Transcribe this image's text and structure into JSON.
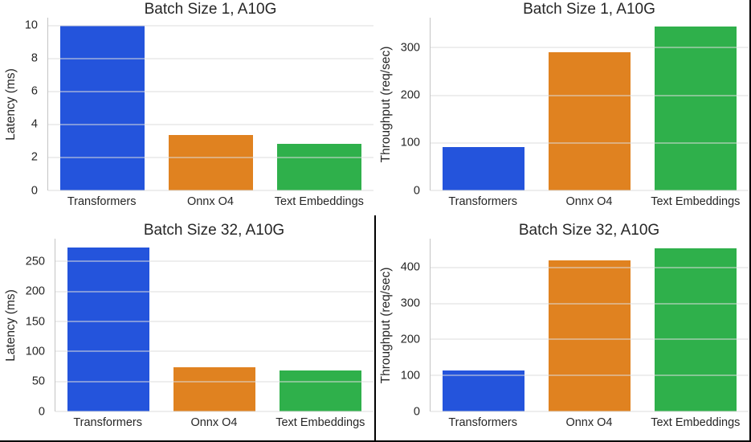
{
  "figure": {
    "background": "#ffffff",
    "text_color": "#262626",
    "grid_color": "#dcdcdc",
    "spine_color": "#c4c4c4",
    "divider_color": "#000000",
    "bar_colors": [
      "#2454dc",
      "#e08220",
      "#2fb04b"
    ]
  },
  "chart_data": [
    {
      "id": "latency-batch-1",
      "type": "bar",
      "title": "Batch Size 1, A10G",
      "xlabel": "",
      "ylabel": "Latency (ms)",
      "categories": [
        "Transformers",
        "Onnx O4",
        "Text Embeddings"
      ],
      "values": [
        9.97,
        3.37,
        2.84
      ],
      "yticks": [
        0,
        2,
        4,
        6,
        8,
        10
      ],
      "ylim": [
        0,
        10.47
      ],
      "grid": true,
      "legend": false
    },
    {
      "id": "throughput-batch-1",
      "type": "bar",
      "title": "Batch Size 1, A10G",
      "xlabel": "",
      "ylabel": "Throughput (req/sec)",
      "categories": [
        "Transformers",
        "Onnx O4",
        "Text Embeddings"
      ],
      "values": [
        92,
        290,
        344
      ],
      "yticks": [
        0,
        100,
        200,
        300
      ],
      "ylim": [
        0,
        363
      ],
      "grid": true,
      "legend": false
    },
    {
      "id": "latency-batch-32",
      "type": "bar",
      "title": "Batch Size 32, A10G",
      "xlabel": "",
      "ylabel": "Latency (ms)",
      "categories": [
        "Transformers",
        "Onnx O4",
        "Text Embeddings"
      ],
      "values": [
        273,
        74,
        68
      ],
      "yticks": [
        0,
        50,
        100,
        150,
        200,
        250
      ],
      "ylim": [
        0,
        288
      ],
      "grid": true,
      "legend": false
    },
    {
      "id": "throughput-batch-32",
      "type": "bar",
      "title": "Batch Size 32, A10G",
      "xlabel": "",
      "ylabel": "Throughput (req/sec)",
      "categories": [
        "Transformers",
        "Onnx O4",
        "Text Embeddings"
      ],
      "values": [
        115,
        419,
        454
      ],
      "yticks": [
        0,
        100,
        200,
        300,
        400
      ],
      "ylim": [
        0,
        480
      ],
      "grid": true,
      "legend": false
    }
  ]
}
